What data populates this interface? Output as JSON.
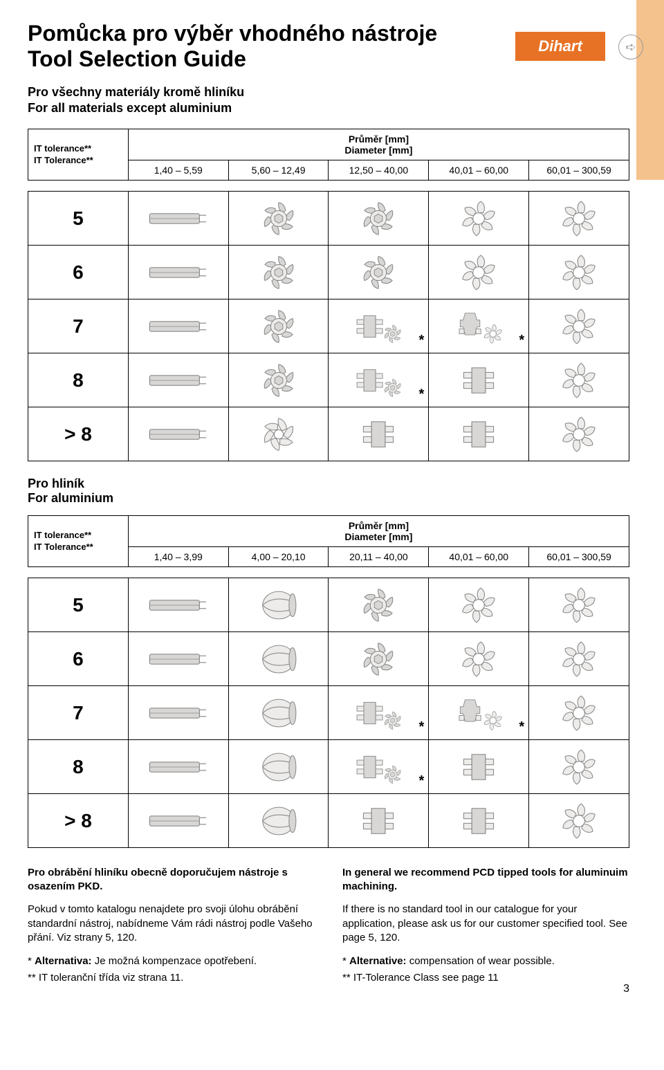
{
  "brand": "Dihart",
  "title_cz": "Pomůcka pro výběr vhodného nástroje",
  "title_en": "Tool Selection Guide",
  "sub_cz": "Pro všechny materiály kromě hliníku",
  "sub_en": "For all materials except aluminium",
  "diam_cz": "Průměr [mm]",
  "diam_en": "Diameter [mm]",
  "tol_cz": "IT tolerance**",
  "tol_en": "IT Tolerance**",
  "table1": {
    "ranges": [
      "1,40 – 5,59",
      "5,60 – 12,49",
      "12,50 – 40,00",
      "40,01 – 60,00",
      "60,01 – 300,59"
    ],
    "rows": [
      "5",
      "6",
      "7",
      "8",
      "> 8"
    ],
    "icons": [
      [
        "shank",
        "hex6",
        "hex6",
        "petal6",
        "petal6"
      ],
      [
        "shank",
        "hex6",
        "hex6",
        "petal6",
        "petal6"
      ],
      [
        "shank",
        "hex6",
        "combo*",
        "holder*",
        "petal6"
      ],
      [
        "shank",
        "hex6",
        "combo*",
        "insert4",
        "petal6"
      ],
      [
        "shank",
        "open6",
        "insert4",
        "insert4",
        "petal6"
      ]
    ]
  },
  "sec2_cz": "Pro hliník",
  "sec2_en": "For aluminium",
  "table2": {
    "ranges": [
      "1,40 – 3,99",
      "4,00 – 20,10",
      "20,11 – 40,00",
      "40,01 – 60,00",
      "60,01 – 300,59"
    ],
    "rows": [
      "5",
      "6",
      "7",
      "8",
      "> 8"
    ],
    "icons": [
      [
        "shank",
        "reamer",
        "hex6",
        "petal6",
        "petal6"
      ],
      [
        "shank",
        "reamer",
        "hex6",
        "petal6",
        "petal6"
      ],
      [
        "shank",
        "reamer",
        "combo*",
        "holder*",
        "petal6"
      ],
      [
        "shank",
        "reamer",
        "combo*",
        "insert4",
        "petal6"
      ],
      [
        "shank",
        "reamer",
        "insert4",
        "insert4",
        "petal6"
      ]
    ]
  },
  "foot_cz": {
    "lead": "Pro obrábění hliníku obecně doporučujem nástroje s osazením PKD.",
    "p1": "Pokud v tomto katalogu nenajdete pro svoji úlohu obrábění standardní nástroj, nabídneme Vám rádi nástroj podle Vašeho přání. Viz strany 5, 120.",
    "n1a": "* ",
    "n1b": "Alternativa:",
    "n1c": " Je možná kompenzace opotřebení.",
    "n2": "** IT toleranční třída viz strana 11."
  },
  "foot_en": {
    "lead": "In general we recommend PCD tipped tools for aluminuim machining.",
    "p1": "If there is no standard tool in our catalogue for your application, please ask us for our customer specified tool. See page 5, 120.",
    "n1a": "* ",
    "n1b": "Alternative:",
    "n1c": " compensation of wear possible.",
    "n2": "** IT-Tolerance Class see page  11"
  },
  "pagenum": "3",
  "colors": {
    "stroke": "#8a8a8a",
    "fill": "#d8d7d5",
    "light": "#edecea"
  }
}
